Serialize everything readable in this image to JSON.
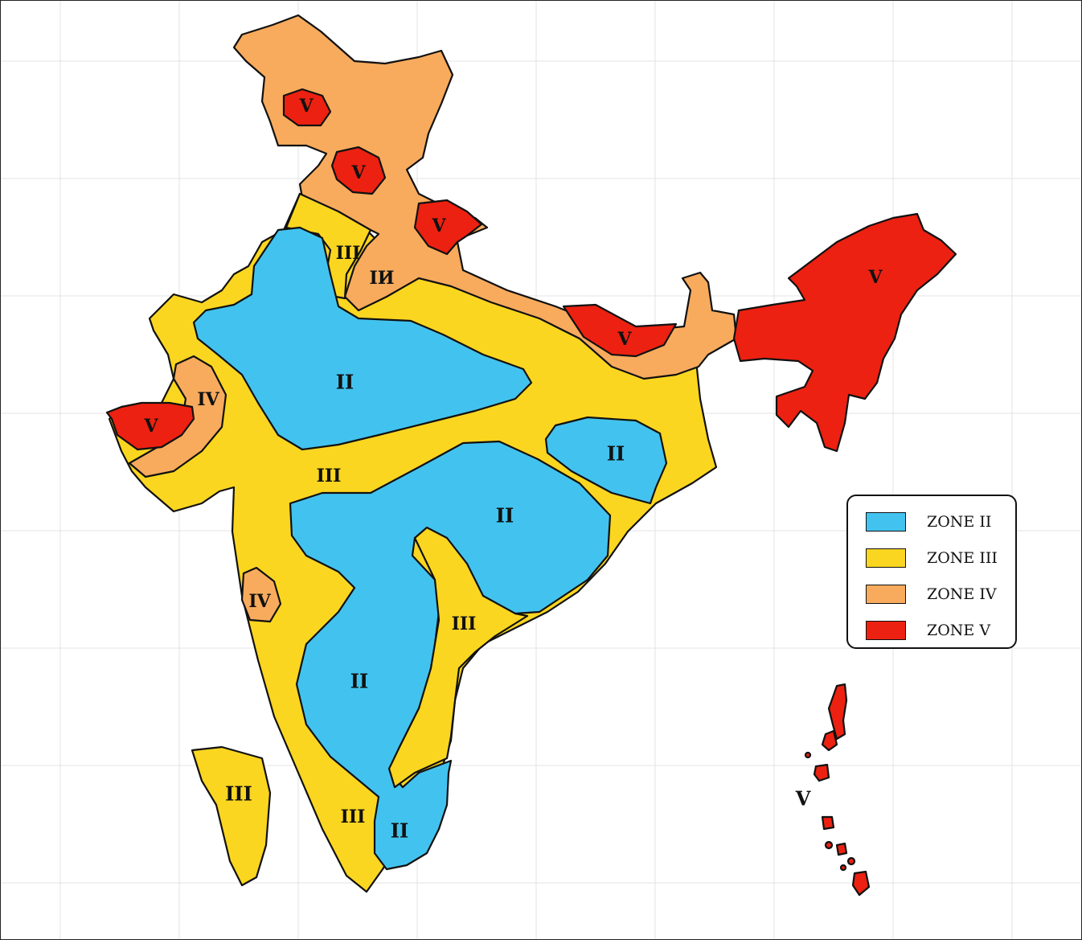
{
  "colors": {
    "zone_ii": "#42c3ef",
    "zone_iii": "#fbd620",
    "zone_iv": "#f8ab5d",
    "zone_v": "#ec2111",
    "grid": "#e3e3e3",
    "outline": "#111111"
  },
  "legend": {
    "items": [
      {
        "label": "ZONE II",
        "color": "#42c3ef"
      },
      {
        "label": "ZONE III",
        "color": "#fbd620"
      },
      {
        "label": "ZONE IV",
        "color": "#f8ab5d"
      },
      {
        "label": "ZONE V",
        "color": "#ec2111"
      }
    ]
  },
  "map_labels": {
    "v_kashmir": "V",
    "v_himachal": "V",
    "v_uttarakhand": "V",
    "v_bihar": "V",
    "v_northeast": "V",
    "v_kutch": "V",
    "v_andaman": "V",
    "iv_gujarat": "IV",
    "iv_maharashtra": "IV",
    "iv_indogangetic": "IИ",
    "iii_punjab": "III",
    "iii_central": "III",
    "iii_andhra": "III",
    "iii_kerala": "III",
    "iii_lakshadweep": "III",
    "ii_northwest": "II",
    "ii_odisha": "II",
    "ii_deccan": "II",
    "ii_karnataka": "II",
    "ii_tamilnadu": "II"
  }
}
